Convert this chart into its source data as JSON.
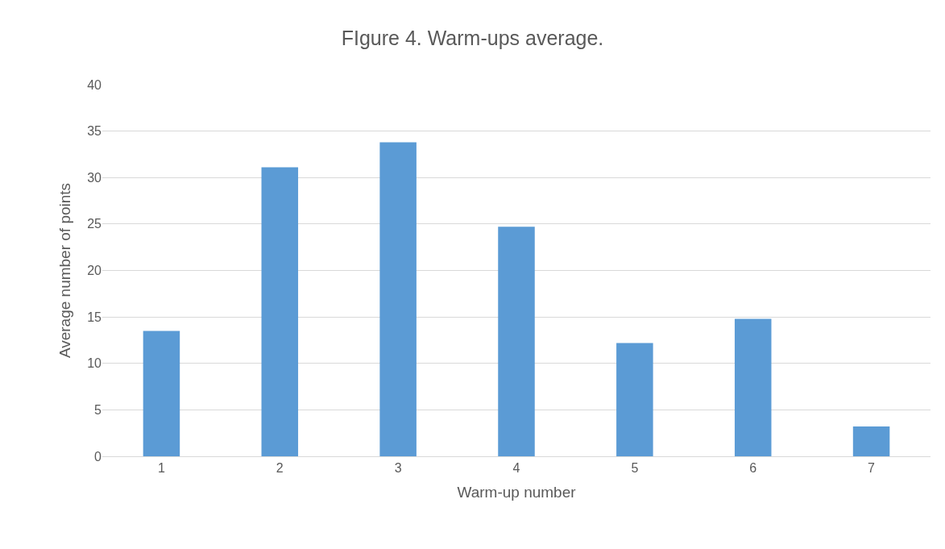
{
  "chart_data": {
    "type": "bar",
    "title": "FIgure 4. Warm-ups average.",
    "xlabel": "Warm-up number",
    "ylabel": "Average number of points",
    "categories": [
      "1",
      "2",
      "3",
      "4",
      "5",
      "6",
      "7"
    ],
    "values": [
      13.5,
      31.1,
      33.8,
      24.7,
      12.2,
      14.8,
      3.2
    ],
    "color": "#5b9bd5",
    "ylim": [
      0,
      40
    ],
    "yticks": [
      0,
      5,
      10,
      15,
      20,
      25,
      30,
      35,
      40
    ],
    "grid": "y",
    "legend": false
  }
}
